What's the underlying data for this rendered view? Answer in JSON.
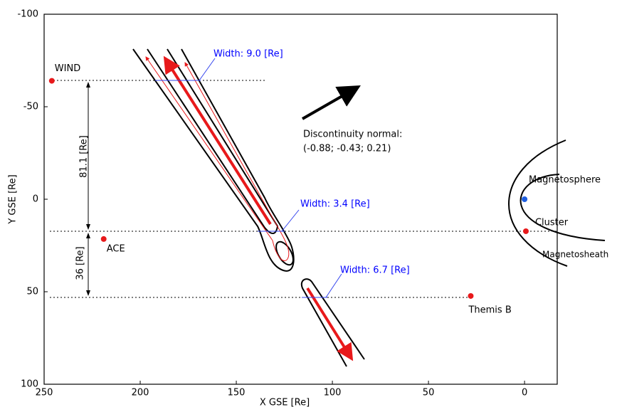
{
  "chart_data": {
    "type": "scatter",
    "xlabel": "X GSE [Re]",
    "ylabel": "Y GSE [Re]",
    "xlim": [
      250,
      -17
    ],
    "ylim": [
      -100,
      100
    ],
    "xticks": [
      250,
      200,
      150,
      100,
      50,
      0
    ],
    "yticks": [
      -100,
      -50,
      0,
      50,
      100
    ],
    "points": [
      {
        "label": "WIND",
        "x": 246,
        "y": -64,
        "color": "#e8191b"
      },
      {
        "label": "ACE",
        "x": 219,
        "y": 21.5,
        "color": "#e8191b"
      },
      {
        "label": "Themis B",
        "x": 28,
        "y": 52.3,
        "color": "#e8191b"
      },
      {
        "label": "Cluster",
        "x": -0.7,
        "y": 17.3,
        "color": "#e8191b"
      },
      {
        "label": null,
        "x": 0,
        "y": 0,
        "color": "#1f5fe0"
      }
    ],
    "annotations": [
      "Width: 9.0 [Re]",
      "Width: 3.4 [Re]",
      "Width: 6.7 [Re]",
      "Discontinuity normal:",
      "(-0.88; -0.43; 0.21)",
      "81.1 [Re]",
      "36 [Re]",
      "Magnetosphere",
      "Magnetosheath"
    ]
  }
}
